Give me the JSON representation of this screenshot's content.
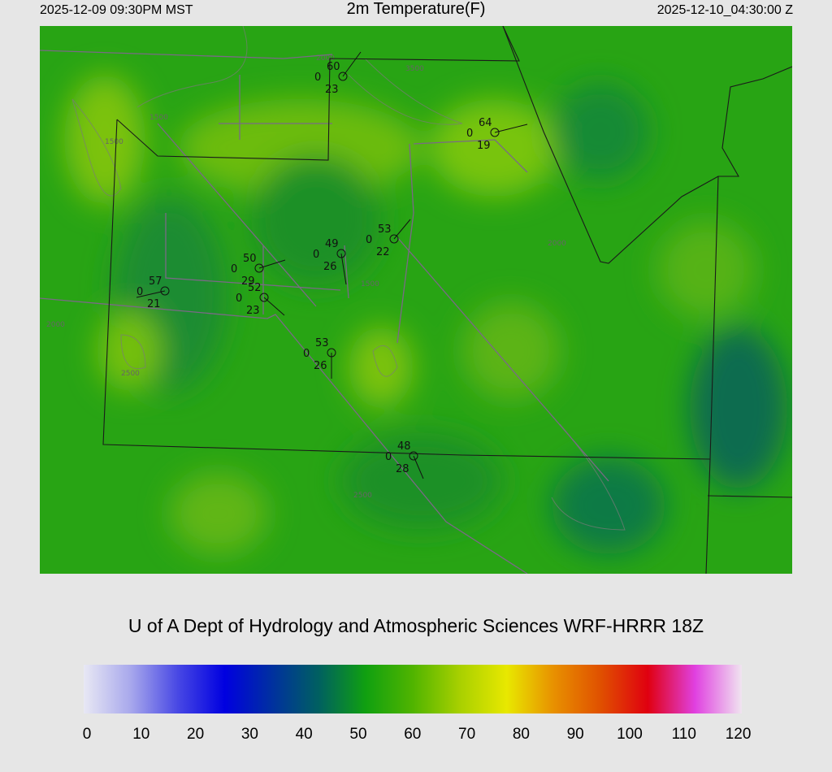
{
  "header": {
    "valid_local": "2025-12-09 09:30PM MST",
    "title": "2m Temperature(F)",
    "valid_utc": "2025-12-10_04:30:00 Z"
  },
  "credit": "U of A Dept of Hydrology and Atmospheric Sciences WRF-HRRR 18Z",
  "colorbar": {
    "ticks": [
      "0",
      "10",
      "20",
      "30",
      "40",
      "50",
      "60",
      "70",
      "80",
      "90",
      "100",
      "110",
      "120"
    ],
    "colors": [
      "#e8e8f4",
      "#a8a8ec",
      "#4848e4",
      "#0000e0",
      "#0030a0",
      "#006060",
      "#10a010",
      "#50b400",
      "#a8d000",
      "#e8e800",
      "#e89000",
      "#e05000",
      "#e00010",
      "#e040e0",
      "#f0e4f0"
    ]
  },
  "contour_labels": [
    "1500",
    "1500",
    "1500",
    "2000",
    "2000",
    "2000",
    "2500",
    "2500",
    "3500"
  ],
  "stations": [
    {
      "temp": "60",
      "left": "0",
      "dew": "23"
    },
    {
      "temp": "64",
      "left": "0",
      "dew": "19"
    },
    {
      "temp": "53",
      "left": "0",
      "dew": "22"
    },
    {
      "temp": "49",
      "left": "0",
      "dew": "26"
    },
    {
      "temp": "50",
      "left": "0",
      "dew": "29"
    },
    {
      "temp": "57",
      "left": "0",
      "dew": "21"
    },
    {
      "temp": "52",
      "left": "0",
      "dew": "23"
    },
    {
      "temp": "53",
      "left": "0",
      "dew": "26"
    },
    {
      "temp": "48",
      "left": "0",
      "dew": "28"
    }
  ]
}
